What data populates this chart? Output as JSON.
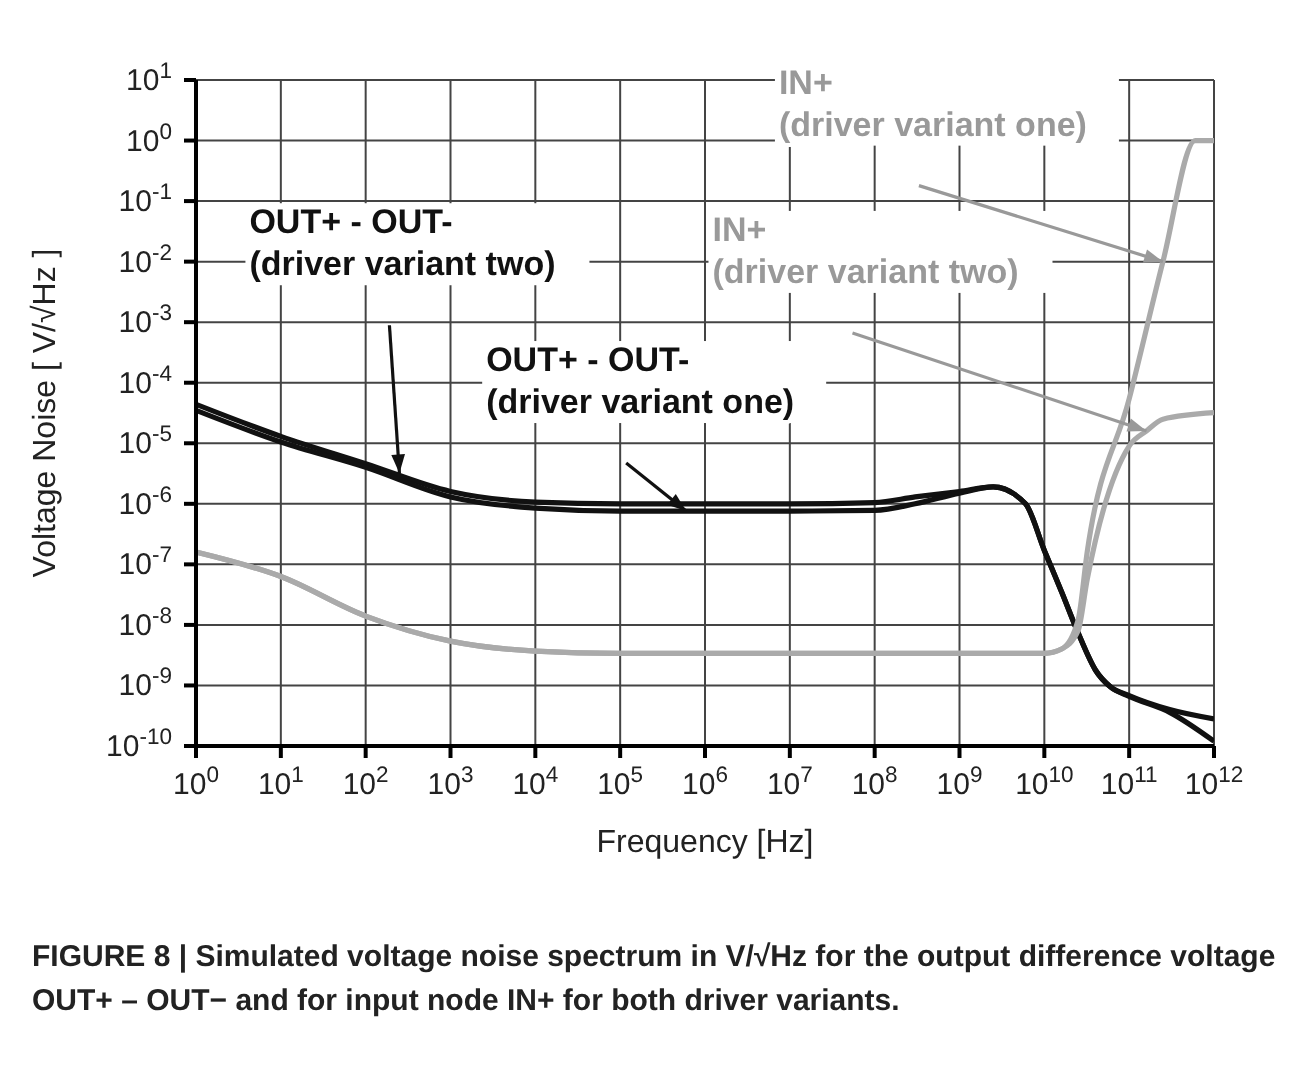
{
  "chart_data": {
    "type": "line",
    "xlabel": "Frequency [Hz]",
    "ylabel": "Voltage Noise [ V/√Hz ]",
    "log": "xy",
    "grid": true,
    "legend": false,
    "marker": "none",
    "line_style": "solid",
    "xlim": [
      1,
      1000000000000
    ],
    "ylim": [
      1e-10,
      10
    ],
    "xticks": [
      {
        "value": 1,
        "label": "10$^{0}$"
      },
      {
        "value": 10,
        "label": "10$^{1}$"
      },
      {
        "value": 100,
        "label": "10$^{2}$"
      },
      {
        "value": 1000,
        "label": "10$^{3}$"
      },
      {
        "value": 10000,
        "label": "10$^{4}$"
      },
      {
        "value": 100000,
        "label": "10$^{5}$"
      },
      {
        "value": 1000000,
        "label": "10$^{6}$"
      },
      {
        "value": 10000000,
        "label": "10$^{7}$"
      },
      {
        "value": 100000000,
        "label": "10$^{8}$"
      },
      {
        "value": 1000000000,
        "label": "10$^{9}$"
      },
      {
        "value": 10000000000,
        "label": "10$^{10}$"
      },
      {
        "value": 100000000000,
        "label": "10$^{11}$"
      },
      {
        "value": 1000000000000,
        "label": "10$^{12}$"
      }
    ],
    "yticks": [
      {
        "value": 1e-10,
        "label": "10$^{-10}$"
      },
      {
        "value": 1e-09,
        "label": "10$^{-9}$"
      },
      {
        "value": 1e-08,
        "label": "10$^{-8}$"
      },
      {
        "value": 1e-07,
        "label": "10$^{-7}$"
      },
      {
        "value": 1e-06,
        "label": "10$^{-6}$"
      },
      {
        "value": 1e-05,
        "label": "10$^{-5}$"
      },
      {
        "value": 0.0001,
        "label": "10$^{-4}$"
      },
      {
        "value": 0.001,
        "label": "10$^{-3}$"
      },
      {
        "value": 0.01,
        "label": "10$^{-2}$"
      },
      {
        "value": 0.1,
        "label": "10$^{-1}$"
      },
      {
        "value": 1,
        "label": "10$^{0}$"
      },
      {
        "value": 10,
        "label": "10$^{1}$"
      }
    ],
    "series": [
      {
        "color": "#111111",
        "x": [
          1,
          10,
          100,
          1000,
          10000,
          100000,
          1000000,
          10000000,
          100000000,
          300000000,
          1000000000,
          2500000000,
          6000000000,
          10000000000,
          16000000000,
          25000000000,
          40000000000,
          60000000000,
          100000000000,
          300000000000,
          1000000000000
        ],
        "values": [
          4.4e-05,
          1.3e-05,
          4.6e-06,
          1.6e-06,
          1.07e-06,
          1e-06,
          1e-06,
          1e-06,
          1.05e-06,
          1.3e-06,
          1.6e-06,
          1.9e-06,
          1e-06,
          1.7e-07,
          3.5e-08,
          7.4e-09,
          1.8e-09,
          9.5e-10,
          6.8e-10,
          4e-10,
          2.8e-10
        ]
      },
      {
        "color": "#111111",
        "x": [
          1,
          10,
          100,
          1000,
          10000,
          100000,
          1000000,
          10000000,
          100000000,
          300000000,
          1000000000,
          2500000000,
          6000000000,
          10000000000,
          16000000000,
          25000000000,
          40000000000,
          60000000000,
          100000000000,
          300000000000,
          1000000000000
        ],
        "values": [
          3.5e-05,
          1.05e-05,
          4e-06,
          1.3e-06,
          8.5e-07,
          7.6e-07,
          7.6e-07,
          7.6e-07,
          7.8e-07,
          1e-06,
          1.5e-06,
          1.9e-06,
          1e-06,
          1.7e-07,
          3.5e-08,
          7.4e-09,
          1.8e-09,
          9.5e-10,
          6.6e-10,
          3.6e-10,
          1.2e-10
        ]
      },
      {
        "color": "#aaaaaa",
        "x": [
          1,
          10,
          100,
          1000,
          10000,
          100000,
          1000000,
          10000000,
          100000000,
          1000000000,
          10000000000,
          16000000000,
          25000000000,
          32000000000,
          100000000000,
          250000000000,
          600000000000,
          1000000000000
        ],
        "values": [
          1.6e-07,
          6.3e-08,
          1.4e-08,
          5.4e-09,
          3.7e-09,
          3.4e-09,
          3.4e-09,
          3.4e-09,
          3.4e-09,
          3.4e-09,
          3.4e-09,
          4e-09,
          1.2e-08,
          1.6e-07,
          5.4e-05,
          0.01,
          1,
          1
        ]
      },
      {
        "color": "#aaaaaa",
        "x": [
          1,
          10,
          100,
          1000,
          10000,
          100000,
          1000000,
          10000000,
          100000000,
          1000000000,
          10000000000,
          16000000000,
          25000000000,
          32000000000,
          100000000000,
          160000000000,
          250000000000,
          1000000000000
        ],
        "values": [
          1.6e-07,
          6.3e-08,
          1.4e-08,
          5.4e-09,
          3.7e-09,
          3.4e-09,
          3.4e-09,
          3.4e-09,
          3.4e-09,
          3.4e-09,
          3.4e-09,
          4e-09,
          8e-09,
          5.6e-08,
          9e-06,
          1.6e-05,
          2.5e-05,
          3.2e-05
        ]
      }
    ],
    "annotations": [
      {
        "text": "OUT+ - OUT-\n(driver variant two)",
        "x": 250,
        "y": 3.2e-06
      },
      {
        "text": "OUT+ - OUT-\n(driver variant one)",
        "x": 600000,
        "y": 7.6e-07
      },
      {
        "text": "IN+\n(driver variant one)",
        "x": 250000000000,
        "y": 0.01
      },
      {
        "text": "IN+\n(driver variant two)",
        "x": 160000000000,
        "y": 1.6e-05
      },
      "FIGURE 8 | Simulated voltage noise spectrum in V/√Hz for the output difference voltage OUT+ – OUT− and for input node IN+ for both driver variants."
    ]
  }
}
